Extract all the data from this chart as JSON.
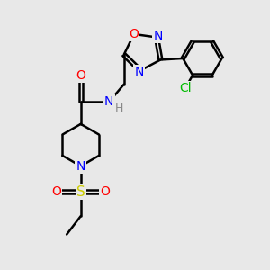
{
  "bg_color": "#e8e8e8",
  "atom_colors": {
    "C": "#000000",
    "N": "#0000ff",
    "O": "#ff0000",
    "S": "#cccc00",
    "Cl": "#00bb00",
    "H": "#888888"
  },
  "bond_color": "#000000",
  "bond_width": 1.8,
  "font_size": 10,
  "title": ""
}
